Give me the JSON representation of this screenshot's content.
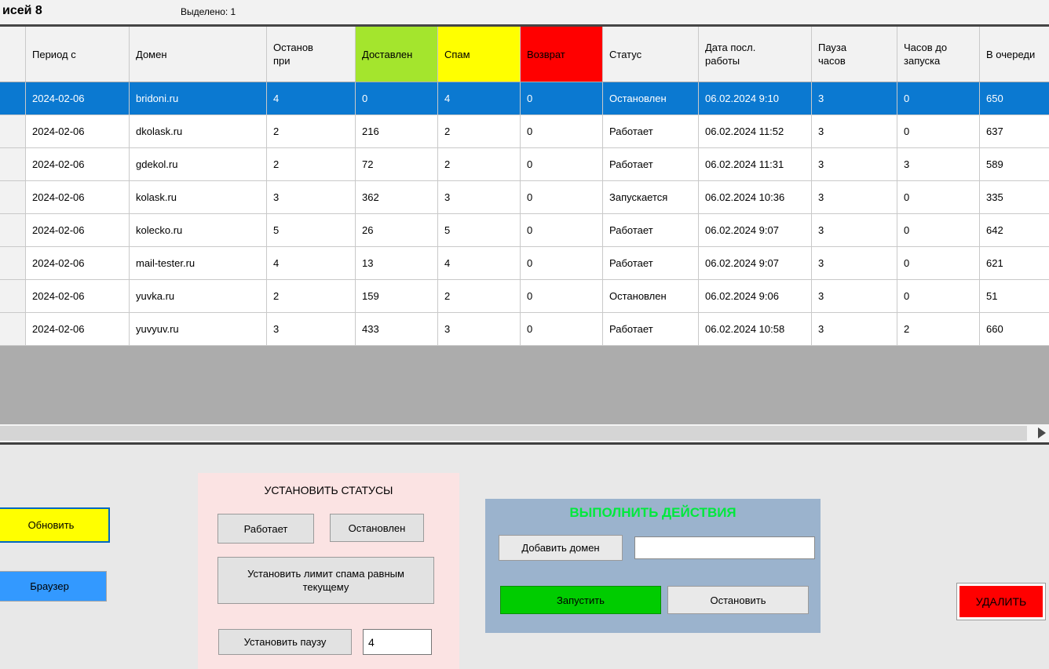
{
  "window": {
    "records_label": "исей 8",
    "selected_label": "Выделено: 1"
  },
  "table": {
    "columns": [
      "",
      "Период с",
      "Домен",
      "Останов\nпри",
      "Доставлен",
      "Спам",
      "Возврат",
      "Статус",
      "Дата посл.\nработы",
      "Пауза\nчасов",
      "Часов до\nзапуска",
      "В очереди"
    ],
    "header_colors": {
      "delivered": "#A4E52D",
      "spam": "#FFFF00",
      "bounce": "#FF0000"
    },
    "selection_color": "#0B79D1",
    "rows": [
      {
        "selected": true,
        "period": "2024-02-06",
        "domain": "bridoni.ru",
        "stop_at": "4",
        "delivered": "0",
        "spam": "4",
        "bounce": "0",
        "status": "Остановлен",
        "last_run": "06.02.2024 9:10",
        "pause_hours": "3",
        "hours_to_start": "0",
        "queued": "650"
      },
      {
        "selected": false,
        "period": "2024-02-06",
        "domain": "dkolask.ru",
        "stop_at": "2",
        "delivered": "216",
        "spam": "2",
        "bounce": "0",
        "status": "Работает",
        "last_run": "06.02.2024 11:52",
        "pause_hours": "3",
        "hours_to_start": "0",
        "queued": "637"
      },
      {
        "selected": false,
        "period": "2024-02-06",
        "domain": "gdekol.ru",
        "stop_at": "2",
        "delivered": "72",
        "spam": "2",
        "bounce": "0",
        "status": "Работает",
        "last_run": "06.02.2024 11:31",
        "pause_hours": "3",
        "hours_to_start": "3",
        "queued": "589"
      },
      {
        "selected": false,
        "period": "2024-02-06",
        "domain": "kolask.ru",
        "stop_at": "3",
        "delivered": "362",
        "spam": "3",
        "bounce": "0",
        "status": "Запускается",
        "last_run": "06.02.2024 10:36",
        "pause_hours": "3",
        "hours_to_start": "0",
        "queued": "335"
      },
      {
        "selected": false,
        "period": "2024-02-06",
        "domain": "kolecko.ru",
        "stop_at": "5",
        "delivered": "26",
        "spam": "5",
        "bounce": "0",
        "status": "Работает",
        "last_run": "06.02.2024 9:07",
        "pause_hours": "3",
        "hours_to_start": "0",
        "queued": "642"
      },
      {
        "selected": false,
        "period": "2024-02-06",
        "domain": "mail-tester.ru",
        "stop_at": "4",
        "delivered": "13",
        "spam": "4",
        "bounce": "0",
        "status": "Работает",
        "last_run": "06.02.2024 9:07",
        "pause_hours": "3",
        "hours_to_start": "0",
        "queued": "621"
      },
      {
        "selected": false,
        "period": "2024-02-06",
        "domain": "yuvka.ru",
        "stop_at": "2",
        "delivered": "159",
        "spam": "2",
        "bounce": "0",
        "status": "Остановлен",
        "last_run": "06.02.2024 9:06",
        "pause_hours": "3",
        "hours_to_start": "0",
        "queued": "51"
      },
      {
        "selected": false,
        "period": "2024-02-06",
        "domain": "yuvyuv.ru",
        "stop_at": "3",
        "delivered": "433",
        "spam": "3",
        "bounce": "0",
        "status": "Работает",
        "last_run": "06.02.2024 10:58",
        "pause_hours": "3",
        "hours_to_start": "2",
        "queued": "660"
      }
    ]
  },
  "controls": {
    "refresh": "Обновить",
    "browser": "Браузер",
    "delete": "УДАЛИТЬ",
    "refresh_color": "#FFFF00",
    "browser_color": "#3399FF",
    "delete_color": "#FF0000"
  },
  "status_panel": {
    "title": "УСТАНОВИТЬ СТАТУСЫ",
    "btn_working": "Работает",
    "btn_stopped": "Остановлен",
    "btn_set_spam_limit": "Установить лимит спама равным текущему",
    "btn_set_pause": "Установить паузу",
    "pause_value": "4",
    "panel_color": "#FBE3E3"
  },
  "actions_panel": {
    "title": "ВЫПОЛНИТЬ ДЕЙСТВИЯ",
    "title_color": "#00E93C",
    "btn_add_domain": "Добавить домен",
    "domain_input_value": "",
    "btn_start": "Запустить",
    "btn_stop": "Остановить",
    "start_color": "#00CC00",
    "panel_color": "#9BB3CD"
  }
}
